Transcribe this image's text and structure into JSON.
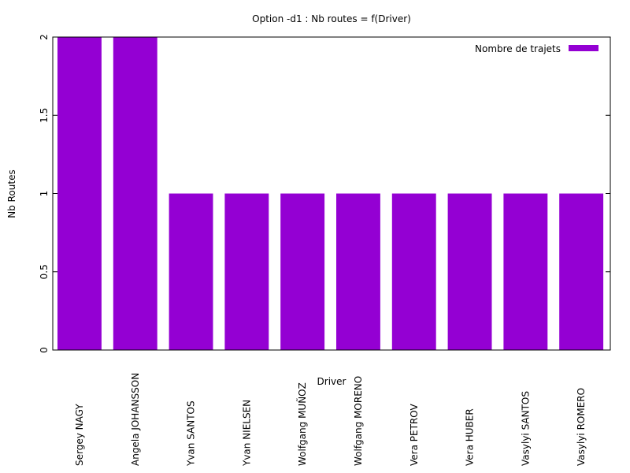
{
  "chart_data": {
    "type": "bar",
    "title": "Option -d1 : Nb routes = f(Driver)",
    "xlabel": "Driver",
    "ylabel": "Nb Routes",
    "ylim": [
      0,
      2
    ],
    "yticks": [
      "0",
      "0.5",
      "1",
      "1.5",
      "2"
    ],
    "grid": false,
    "legend_position": "top-right",
    "categories": [
      "Sergey NAGY",
      "Angela JOHANSSON",
      "Yvan SANTOS",
      "Yvan NIELSEN",
      "Wolfgang MUÑOZ",
      "Wolfgang MORENO",
      "Vera PETROV",
      "Vera HUBER",
      "Vasylyi SANTOS",
      "Vasylyi ROMERO"
    ],
    "series": [
      {
        "name": "Nombre de trajets",
        "color": "#9400d3",
        "values": [
          2,
          2,
          1,
          1,
          1,
          1,
          1,
          1,
          1,
          1
        ]
      }
    ]
  }
}
